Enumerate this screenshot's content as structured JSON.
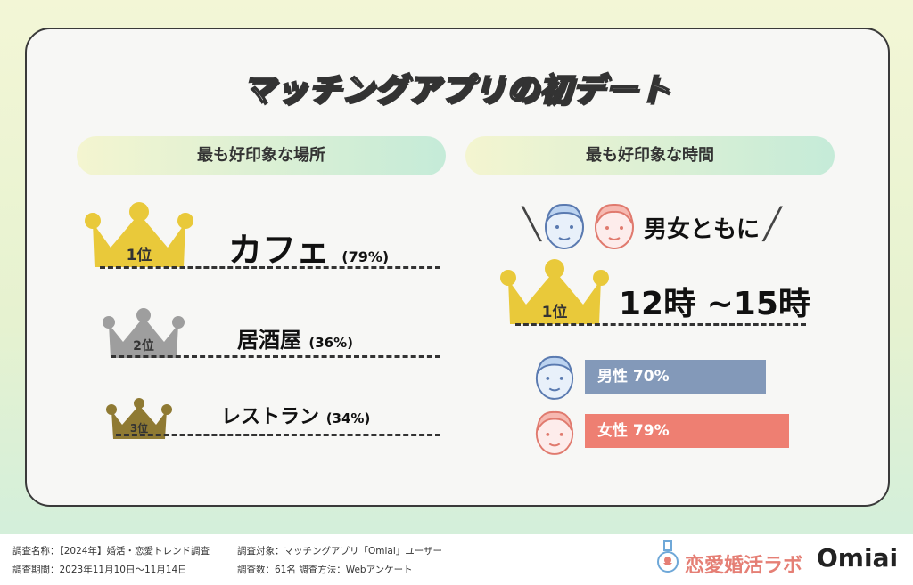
{
  "title": "マッチングアプリの初デート",
  "left": {
    "header": "最も好印象な場所",
    "ranks": [
      {
        "rank": "1位",
        "name": "カフェ",
        "pct": "(79%)",
        "color": "#e9c93a"
      },
      {
        "rank": "2位",
        "name": "居酒屋",
        "pct": "(36%)",
        "color": "#9e9e9e"
      },
      {
        "rank": "3位",
        "name": "レストラン",
        "pct": "(34%)",
        "color": "#8f7a33"
      }
    ]
  },
  "right": {
    "header": "最も好印象な時間",
    "both_label": "男女ともに",
    "rank": "1位",
    "time": "12時 ~15時",
    "bars": [
      {
        "label": "男性  70%",
        "value": 70,
        "color": "#8399b9",
        "face": "male-face-icon"
      },
      {
        "label": "女性  79%",
        "value": 79,
        "color": "#ee7f72",
        "face": "female-face-icon"
      }
    ]
  },
  "footer": {
    "survey_name": "調査名称：【2024年】婚活・恋愛トレンド調査",
    "survey_period": "調査期間：2023年11月10日〜11月14日",
    "survey_target": "調査対象：マッチングアプリ「Omiai」ユーザー",
    "survey_count": "調査数：61名 調査方法：Webアンケート",
    "logo_lab": "恋愛婚活ラボ",
    "logo_omiai": "Omiai"
  }
}
